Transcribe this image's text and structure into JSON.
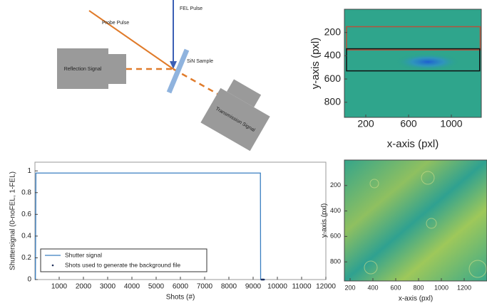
{
  "diagram": {
    "probe": "Probe Pulse",
    "fel": "FEL Pulse",
    "sample": "SiN Sample",
    "reflection": "Reflection Signal",
    "transmission": "Transmission Signal"
  },
  "chart_data": [
    {
      "type": "image",
      "xlabel": "x-axis (pxl)",
      "ylabel": "y-axis (pxl)",
      "xlim": [
        0,
        1280
      ],
      "ylim": [
        930,
        0
      ],
      "xticks": [
        200,
        600,
        1000
      ],
      "yticks": [
        200,
        400,
        600,
        800
      ],
      "regions": [
        {
          "color": "#b5533c",
          "x": [
            20,
            1270
          ],
          "y": [
            150,
            350
          ]
        },
        {
          "color": "#111111",
          "x": [
            20,
            1265
          ],
          "y": [
            340,
            530
          ]
        }
      ]
    },
    {
      "type": "line",
      "xlabel": "Shots (#)",
      "ylabel": "Shuttersignal (0-noFEL, 1-FEL)",
      "xlim": [
        0,
        12000
      ],
      "ylim": [
        0,
        1.08
      ],
      "xticks": [
        1000,
        2000,
        3000,
        4000,
        5000,
        6000,
        7000,
        8000,
        9000,
        10000,
        11000,
        12000
      ],
      "yticks": [
        0,
        0.2,
        0.4,
        0.6,
        0.8,
        1
      ],
      "series": [
        {
          "name": "Shutter signal",
          "color": "#3a7fc1",
          "x": [
            0,
            20,
            40,
            9300,
            9310,
            9500
          ],
          "values": [
            0,
            0,
            0.98,
            0.98,
            0,
            0
          ]
        },
        {
          "name": "Shots used to generate the background file",
          "color": "#1f2f5a",
          "x": [
            9350,
            9380,
            9410,
            9440
          ],
          "values": [
            0,
            0,
            0,
            0
          ]
        }
      ]
    },
    {
      "type": "image",
      "xlabel": "x-axis (pxl)",
      "ylabel": "y-axis (pxl)",
      "xlim": [
        150,
        1400
      ],
      "ylim": [
        950,
        0
      ],
      "xticks": [
        200,
        400,
        600,
        800,
        1000,
        1200
      ],
      "yticks": [
        200,
        400,
        600,
        800
      ]
    }
  ]
}
